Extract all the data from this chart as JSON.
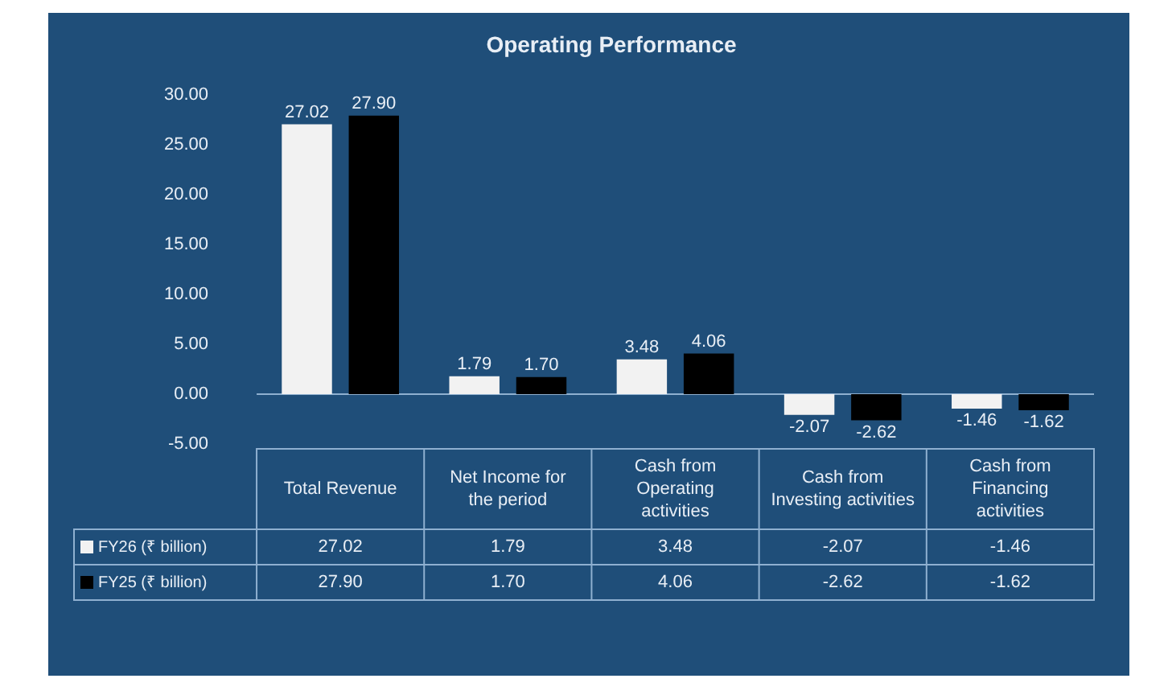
{
  "chart_data": {
    "type": "bar",
    "title": "Operating Performance",
    "categories": [
      "Total Revenue",
      "Net Income for the period",
      "Cash from Operating activities",
      "Cash from Investing activities",
      "Cash from Financing activities"
    ],
    "series": [
      {
        "name": "FY26 (₹ billion)",
        "color": "#f2f2f2",
        "values": [
          27.02,
          1.79,
          3.48,
          -2.07,
          -1.46
        ],
        "value_labels": [
          "27.02",
          "1.79",
          "3.48",
          "-2.07",
          "-1.46"
        ]
      },
      {
        "name": "FY25 (₹ billion)",
        "color": "#000000",
        "values": [
          27.9,
          1.7,
          4.06,
          -2.62,
          -1.62
        ],
        "value_labels": [
          "27.90",
          "1.70",
          "4.06",
          "-2.62",
          "-1.62"
        ]
      }
    ],
    "ylim": [
      -5,
      30
    ],
    "yticks": [
      {
        "value": -5,
        "label": "-5.00"
      },
      {
        "value": 0,
        "label": "0.00"
      },
      {
        "value": 5,
        "label": "5.00"
      },
      {
        "value": 10,
        "label": "10.00"
      },
      {
        "value": 15,
        "label": "15.00"
      },
      {
        "value": 20,
        "label": "20.00"
      },
      {
        "value": 25,
        "label": "25.00"
      },
      {
        "value": 30,
        "label": "30.00"
      }
    ],
    "ref_lines": [
      {
        "axis": "y",
        "value": 0,
        "color": "#8fb0d0"
      }
    ],
    "legend": "bottom"
  }
}
